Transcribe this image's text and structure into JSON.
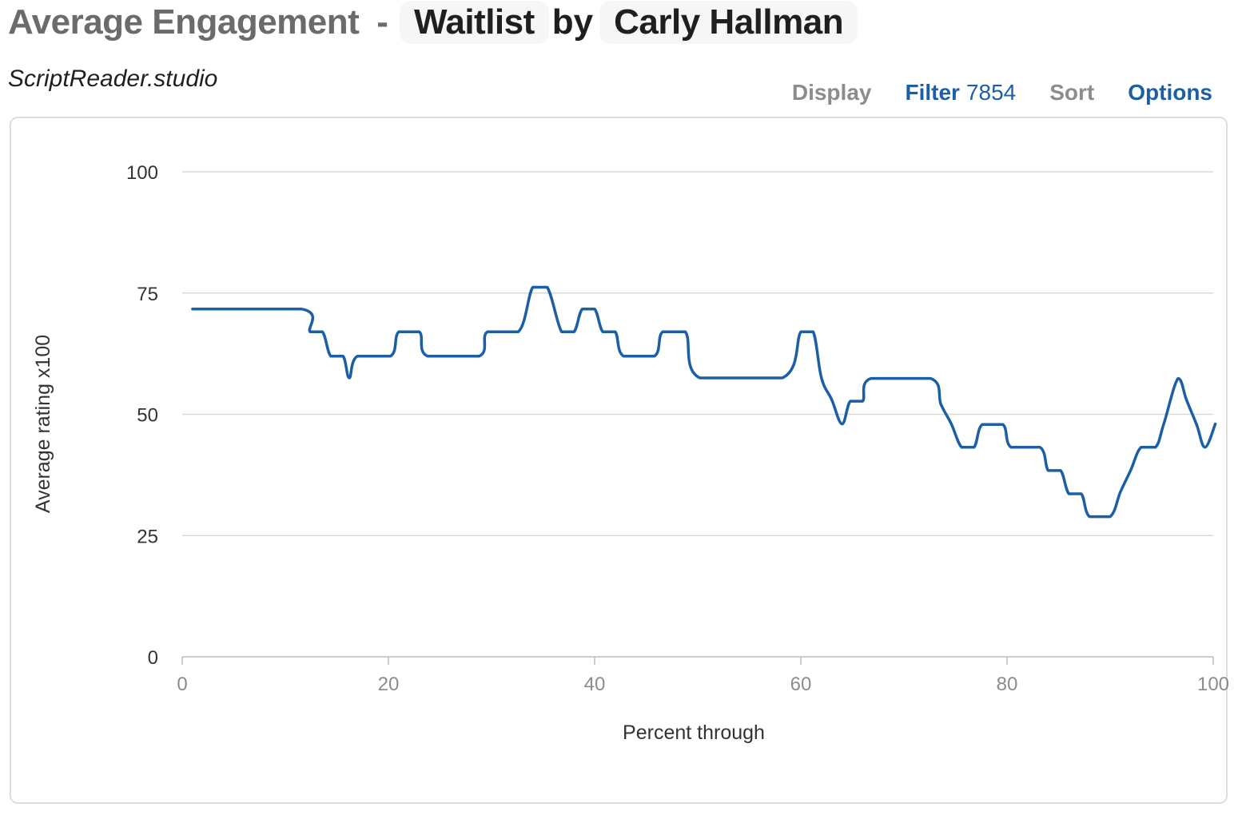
{
  "header": {
    "prefix": "Average Engagement",
    "dash": "-",
    "script_title": "Waitlist",
    "by": "by",
    "author": "Carly Hallman"
  },
  "subtitle": "ScriptReader.studio",
  "menu": {
    "display_label": "Display",
    "filter_label": "Filter",
    "filter_count": "7854",
    "sort_label": "Sort",
    "options_label": "Options"
  },
  "colors": {
    "line": "#1d5fa6",
    "grid": "#d9d9d9"
  },
  "chart_data": {
    "type": "line",
    "title": "",
    "xlabel": "Percent through",
    "ylabel": "Average rating x100",
    "xlim": [
      0,
      100
    ],
    "ylim": [
      0,
      100
    ],
    "xticks": [
      0,
      20,
      40,
      60,
      80,
      100
    ],
    "yticks": [
      0,
      25,
      50,
      75,
      100
    ],
    "grid": true,
    "legend": "none",
    "series": [
      {
        "points": [
          [
            1,
            71.7
          ],
          [
            11.6,
            71.7
          ],
          [
            12.4,
            67
          ],
          [
            13.6,
            67
          ],
          [
            14.4,
            62
          ],
          [
            15.6,
            62
          ],
          [
            16.2,
            57.5
          ],
          [
            17,
            62
          ],
          [
            20.2,
            62
          ],
          [
            21,
            67
          ],
          [
            23,
            67
          ],
          [
            23.8,
            62
          ],
          [
            28.8,
            62
          ],
          [
            29.6,
            67
          ],
          [
            32.6,
            67
          ],
          [
            34,
            76.2
          ],
          [
            35.4,
            76.2
          ],
          [
            36.8,
            67
          ],
          [
            38,
            67
          ],
          [
            38.8,
            71.7
          ],
          [
            40,
            71.7
          ],
          [
            40.8,
            67
          ],
          [
            42,
            67
          ],
          [
            42.8,
            62
          ],
          [
            45.8,
            62
          ],
          [
            46.6,
            67
          ],
          [
            48.8,
            67
          ],
          [
            50.2,
            57.5
          ],
          [
            58.2,
            57.5
          ],
          [
            60,
            67
          ],
          [
            61.2,
            67
          ],
          [
            62,
            57.5
          ],
          [
            63,
            53
          ],
          [
            64,
            48
          ],
          [
            64.8,
            52.7
          ],
          [
            66,
            52.7
          ],
          [
            66.8,
            57.4
          ],
          [
            72.6,
            57.4
          ],
          [
            73.6,
            52
          ],
          [
            74.6,
            48
          ],
          [
            75.6,
            43.2
          ],
          [
            76.8,
            43.2
          ],
          [
            77.6,
            47.9
          ],
          [
            79.6,
            47.9
          ],
          [
            80.4,
            43.2
          ],
          [
            83.2,
            43.2
          ],
          [
            84,
            38.4
          ],
          [
            85.2,
            38.4
          ],
          [
            86,
            33.6
          ],
          [
            87.2,
            33.6
          ],
          [
            88,
            28.9
          ],
          [
            90,
            28.9
          ],
          [
            91,
            34
          ],
          [
            92,
            38.5
          ],
          [
            93,
            43.2
          ],
          [
            94.4,
            43.2
          ],
          [
            95.2,
            48
          ],
          [
            96.6,
            57.4
          ],
          [
            97.4,
            53
          ],
          [
            98.4,
            47.8
          ],
          [
            99.2,
            43.2
          ],
          [
            100.2,
            48
          ]
        ]
      }
    ]
  }
}
